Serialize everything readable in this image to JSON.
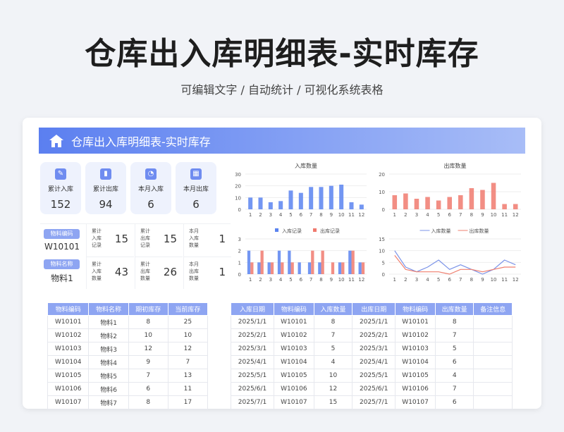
{
  "title": "仓库出入库明细表-实时库存",
  "subtitle": "可编辑文字  /  自动统计  /  可视化系统表格",
  "header": {
    "title": "仓库出入库明细表-实时库存",
    "icon": "home-icon"
  },
  "stats": [
    {
      "label": "累计入库",
      "value": "152",
      "icon": "pencil-icon"
    },
    {
      "label": "累计出库",
      "value": "94",
      "icon": "bar-chart-icon"
    },
    {
      "label": "本月入库",
      "value": "6",
      "icon": "pie-chart-icon"
    },
    {
      "label": "本月出库",
      "value": "6",
      "icon": "grid-icon"
    }
  ],
  "detail": {
    "code_label": "物料编码",
    "code": "W10101",
    "name_label": "物料名称",
    "name": "物料1",
    "cells": [
      {
        "label": "累计入库记录",
        "value": "15"
      },
      {
        "label": "累计出库记录",
        "value": "15"
      },
      {
        "label": "本月入库数量",
        "value": "1"
      },
      {
        "label": "累计入库数量",
        "value": "43"
      },
      {
        "label": "累计出库数量",
        "value": "26"
      },
      {
        "label": "本月出库数量",
        "value": "1"
      }
    ]
  },
  "chart_data": [
    {
      "type": "bar",
      "title": "入库数量",
      "categories": [
        "1",
        "2",
        "3",
        "4",
        "5",
        "6",
        "7",
        "8",
        "9",
        "10",
        "11",
        "12"
      ],
      "ylim": [
        0,
        30
      ],
      "yticks": [
        0,
        10,
        20,
        30
      ],
      "color": "#5b84f0",
      "values": [
        10,
        10,
        6,
        7,
        16,
        14,
        19,
        19,
        20,
        21,
        6,
        4
      ]
    },
    {
      "type": "bar",
      "title": "出库数量",
      "categories": [
        "1",
        "2",
        "3",
        "4",
        "5",
        "6",
        "7",
        "8",
        "9",
        "10",
        "11",
        "12"
      ],
      "ylim": [
        0,
        20
      ],
      "yticks": [
        0,
        10,
        20
      ],
      "color": "#f07a6e",
      "values": [
        8,
        9,
        6,
        7,
        5,
        7,
        8,
        12,
        11,
        15,
        3,
        3
      ]
    },
    {
      "type": "bar",
      "title": "",
      "legend": "top",
      "categories": [
        "1",
        "2",
        "3",
        "4",
        "5",
        "6",
        "7",
        "8",
        "9",
        "10",
        "11",
        "12"
      ],
      "ylim": [
        0,
        3
      ],
      "yticks": [
        0,
        1,
        2,
        3
      ],
      "series": [
        {
          "name": "入库记录",
          "color": "#5b84f0",
          "values": [
            2,
            1,
            1,
            2,
            2,
            1,
            1,
            1,
            0,
            1,
            2,
            1
          ]
        },
        {
          "name": "出库记录",
          "color": "#f07a6e",
          "values": [
            1,
            2,
            1,
            1,
            1,
            0,
            2,
            2,
            1,
            1,
            2,
            1
          ]
        }
      ]
    },
    {
      "type": "line",
      "title": "",
      "legend": "top",
      "categories": [
        "1",
        "2",
        "3",
        "4",
        "5",
        "6",
        "7",
        "8",
        "9",
        "10",
        "11",
        "12"
      ],
      "ylim": [
        0,
        15
      ],
      "yticks": [
        0,
        5,
        10,
        15
      ],
      "series": [
        {
          "name": "入库数量",
          "color": "#7b93e8",
          "values": [
            10,
            3,
            1,
            3,
            6,
            2,
            4,
            2,
            0,
            2,
            6,
            4
          ]
        },
        {
          "name": "出库数量",
          "color": "#ef7f6f",
          "values": [
            8,
            2,
            1,
            1,
            1,
            0,
            2,
            2,
            1,
            2,
            3,
            3
          ]
        }
      ]
    }
  ],
  "stock_table": {
    "headers": [
      "物料编码",
      "物料名称",
      "期初库存",
      "当前库存"
    ],
    "rows": [
      [
        "W10101",
        "物料1",
        "8",
        "25"
      ],
      [
        "W10102",
        "物料2",
        "10",
        "10"
      ],
      [
        "W10103",
        "物料3",
        "12",
        "12"
      ],
      [
        "W10104",
        "物料4",
        "9",
        "7"
      ],
      [
        "W10105",
        "物料5",
        "7",
        "13"
      ],
      [
        "W10106",
        "物料6",
        "6",
        "11"
      ],
      [
        "W10107",
        "物料7",
        "8",
        "17"
      ]
    ]
  },
  "record_table": {
    "headers": [
      "入库日期",
      "物料编码",
      "入库数量",
      "出库日期",
      "物料编码",
      "出库数量",
      "备注信息"
    ],
    "rows": [
      [
        "2025/1/1",
        "W10101",
        "8",
        "2025/1/1",
        "W10101",
        "8",
        ""
      ],
      [
        "2025/2/1",
        "W10102",
        "7",
        "2025/2/1",
        "W10102",
        "7",
        ""
      ],
      [
        "2025/3/1",
        "W10103",
        "5",
        "2025/3/1",
        "W10103",
        "5",
        ""
      ],
      [
        "2025/4/1",
        "W10104",
        "4",
        "2025/4/1",
        "W10104",
        "6",
        ""
      ],
      [
        "2025/5/1",
        "W10105",
        "10",
        "2025/5/1",
        "W10105",
        "4",
        ""
      ],
      [
        "2025/6/1",
        "W10106",
        "12",
        "2025/6/1",
        "W10106",
        "7",
        ""
      ],
      [
        "2025/7/1",
        "W10107",
        "15",
        "2025/7/1",
        "W10107",
        "6",
        ""
      ]
    ]
  }
}
